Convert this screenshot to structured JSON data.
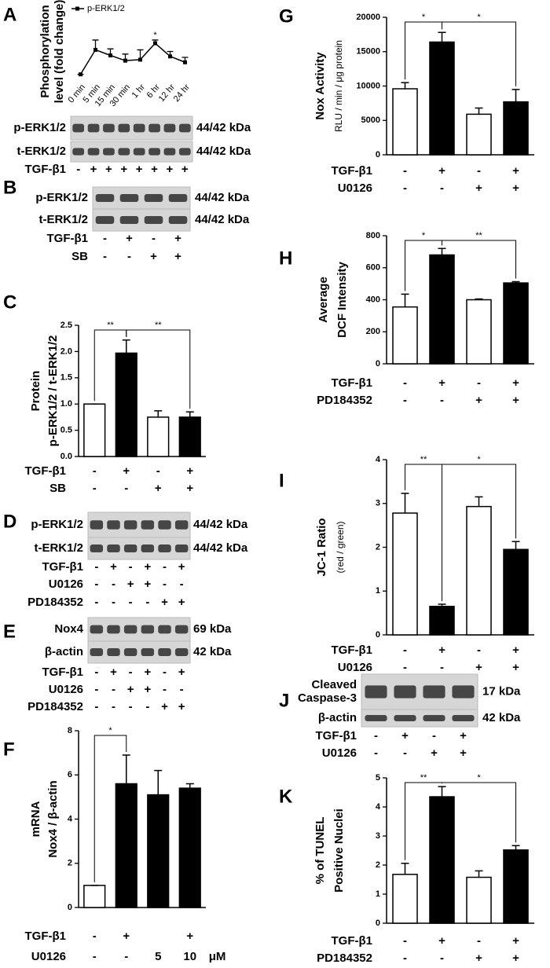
{
  "chart_data": [
    {
      "type": "line",
      "panel": "A",
      "ylabel": [
        "Phosphorylation",
        "level (fold change)"
      ],
      "x": [
        "0 min",
        "5 min",
        "15 min",
        "30 min",
        "1 hr",
        "6 hr",
        "12 hr",
        "24 hr"
      ],
      "ylim": [
        0.8,
        2.6
      ],
      "series": [
        {
          "name": "p-ERK1/2",
          "color": "#000000",
          "values": [
            1.0,
            1.75,
            1.58,
            1.42,
            1.45,
            1.95,
            1.55,
            1.37
          ],
          "errors": [
            0,
            0.3,
            0.2,
            0.2,
            0.3,
            0.1,
            0.15,
            0.15
          ]
        }
      ],
      "annotations": [
        {
          "x": "6 hr",
          "text": "*"
        }
      ]
    },
    {
      "type": "bar",
      "panel": "C",
      "ylabel": [
        "Protein",
        "p-ERK1/2 / t-ERK1/2"
      ],
      "values": [
        1.0,
        1.97,
        0.75,
        0.75
      ],
      "errors": [
        0,
        0.25,
        0.12,
        0.1
      ],
      "colors": [
        "#ffffff",
        "#000000",
        "#ffffff",
        "#000000"
      ],
      "ylim": [
        0,
        2.5
      ],
      "yticks": [
        {
          "value": 0,
          "label": "0.0"
        },
        0.5,
        {
          "value": 1,
          "label": "1.0"
        },
        1.5,
        {
          "value": 2,
          "label": "2.0"
        },
        2.5
      ],
      "significance": [
        "**",
        "**"
      ],
      "treatments": [
        {
          "name": "TGF-β1",
          "signs": [
            "-",
            "+",
            "-",
            "+"
          ]
        },
        {
          "name": "SB",
          "signs": [
            "-",
            "-",
            "+",
            "+"
          ]
        }
      ]
    },
    {
      "type": "bar",
      "panel": "F",
      "ylabel": [
        "mRNA",
        "Nox4 / β-actin"
      ],
      "values": [
        1.0,
        5.6,
        5.1,
        5.4
      ],
      "errors": [
        0,
        1.3,
        1.1,
        0.2
      ],
      "colors": [
        "#ffffff",
        "#000000",
        "#000000",
        "#000000"
      ],
      "ylim": [
        0,
        8
      ],
      "yticks": [
        0,
        2,
        4,
        6,
        8
      ],
      "significance": [
        "*"
      ],
      "treatments": [
        {
          "name": "TGF-β1",
          "signs": [
            "-",
            "+",
            null,
            "+"
          ]
        },
        {
          "name": "U0126",
          "signs": [
            "-",
            "-",
            "5",
            "10"
          ],
          "unit": "μM"
        }
      ]
    },
    {
      "type": "bar",
      "panel": "G",
      "ylabel": [
        "Nox Activity",
        "RLU / min / μg protein"
      ],
      "values": [
        9600,
        16400,
        5900,
        7700
      ],
      "errors": [
        900,
        1400,
        900,
        1800
      ],
      "colors": [
        "#ffffff",
        "#000000",
        "#ffffff",
        "#000000"
      ],
      "ylim": [
        0,
        20000
      ],
      "yticks": [
        0,
        5000,
        10000,
        15000,
        20000
      ],
      "significance": [
        "*",
        "*"
      ],
      "treatments": [
        {
          "name": "TGF-β1",
          "signs": [
            "-",
            "+",
            "-",
            "+"
          ]
        },
        {
          "name": "U0126",
          "signs": [
            "-",
            "-",
            "+",
            "+"
          ]
        }
      ]
    },
    {
      "type": "bar",
      "panel": "H",
      "ylabel": [
        "Average",
        "DCF Intensity"
      ],
      "values": [
        355,
        680,
        400,
        505
      ],
      "errors": [
        80,
        40,
        5,
        8
      ],
      "colors": [
        "#ffffff",
        "#000000",
        "#ffffff",
        "#000000"
      ],
      "ylim": [
        0,
        800
      ],
      "yticks": [
        0,
        200,
        400,
        600,
        800
      ],
      "significance": [
        "*",
        "**"
      ],
      "treatments": [
        {
          "name": "TGF-β1",
          "signs": [
            "-",
            "+",
            "-",
            "+"
          ]
        },
        {
          "name": "PD184352",
          "signs": [
            "-",
            "-",
            "+",
            "+"
          ]
        }
      ]
    },
    {
      "type": "bar",
      "panel": "I",
      "ylabel": [
        "JC-1 Ratio",
        "(red / green)"
      ],
      "values": [
        2.78,
        0.65,
        2.93,
        1.95
      ],
      "errors": [
        0.45,
        0.05,
        0.22,
        0.18
      ],
      "colors": [
        "#ffffff",
        "#000000",
        "#ffffff",
        "#000000"
      ],
      "ylim": [
        0,
        4
      ],
      "yticks": [
        0,
        1,
        2,
        3,
        4
      ],
      "significance": [
        "**",
        "*"
      ],
      "treatments": [
        {
          "name": "TGF-β1",
          "signs": [
            "-",
            "+",
            "-",
            "+"
          ]
        },
        {
          "name": "U0126",
          "signs": [
            "-",
            "-",
            "+",
            "+"
          ]
        }
      ]
    },
    {
      "type": "bar",
      "panel": "K",
      "ylabel": [
        "% of TUNEL",
        "Positive Nuclei"
      ],
      "values": [
        1.68,
        4.35,
        1.58,
        2.52
      ],
      "errors": [
        0.38,
        0.35,
        0.22,
        0.15
      ],
      "colors": [
        "#ffffff",
        "#000000",
        "#ffffff",
        "#000000"
      ],
      "ylim": [
        0,
        5
      ],
      "yticks": [
        0,
        1,
        2,
        3,
        4,
        5
      ],
      "significance": [
        "**",
        "*"
      ],
      "treatments": [
        {
          "name": "TGF-β1",
          "signs": [
            "-",
            "+",
            "-",
            "+"
          ]
        },
        {
          "name": "PD184352",
          "signs": [
            "-",
            "-",
            "+",
            "+"
          ]
        }
      ]
    }
  ],
  "blots": [
    {
      "bands": [
        {
          "name": "p-ERK1/2",
          "size": "44/42 kDa"
        },
        {
          "name": "t-ERK1/2",
          "size": "44/42 kDa"
        }
      ],
      "treatments": [
        {
          "name": "TGF-β1",
          "signs": [
            "-",
            "+",
            "+",
            "+",
            "+",
            "+",
            "+",
            "+"
          ]
        }
      ]
    },
    {
      "panel": "B",
      "bands": [
        {
          "name": "p-ERK1/2",
          "size": "44/42 kDa"
        },
        {
          "name": "t-ERK1/2",
          "size": "44/42 kDa"
        }
      ],
      "treatments": [
        {
          "name": "TGF-β1",
          "signs": [
            "-",
            "+",
            "-",
            "+"
          ]
        },
        {
          "name": "SB",
          "signs": [
            "-",
            "-",
            "+",
            "+"
          ]
        }
      ]
    },
    {
      "panel": "D",
      "bands": [
        {
          "name": "p-ERK1/2",
          "size": "44/42 kDa"
        },
        {
          "name": "t-ERK1/2",
          "size": "44/42 kDa"
        }
      ],
      "treatments": [
        {
          "name": "TGF-β1",
          "signs": [
            "-",
            "+",
            "-",
            "+",
            "-",
            "+"
          ]
        },
        {
          "name": "U0126",
          "signs": [
            "-",
            "-",
            "+",
            "+",
            "-",
            "-"
          ]
        },
        {
          "name": "PD184352",
          "signs": [
            "-",
            "-",
            "-",
            "-",
            "+",
            "+"
          ]
        }
      ]
    },
    {
      "panel": "E",
      "bands": [
        {
          "name": "Nox4",
          "size": "69 kDa"
        },
        {
          "name": "β-actin",
          "size": "42 kDa"
        }
      ],
      "treatments": [
        {
          "name": "TGF-β1",
          "signs": [
            "-",
            "+",
            "-",
            "+",
            "-",
            "+"
          ]
        },
        {
          "name": "U0126",
          "signs": [
            "-",
            "-",
            "+",
            "+",
            "-",
            "-"
          ]
        },
        {
          "name": "PD184352",
          "signs": [
            "-",
            "-",
            "-",
            "-",
            "+",
            "+"
          ]
        }
      ]
    },
    {
      "panel": "J",
      "bands": [
        {
          "name": [
            "Cleaved",
            "Caspase-3"
          ],
          "size": "17 kDa"
        },
        {
          "name": "β-actin",
          "size": "42 kDa"
        }
      ],
      "treatments": [
        {
          "name": "TGF-β1",
          "signs": [
            "-",
            "+",
            "-",
            "+"
          ]
        },
        {
          "name": "U0126",
          "signs": [
            "-",
            "-",
            "+",
            "+"
          ]
        }
      ]
    }
  ]
}
